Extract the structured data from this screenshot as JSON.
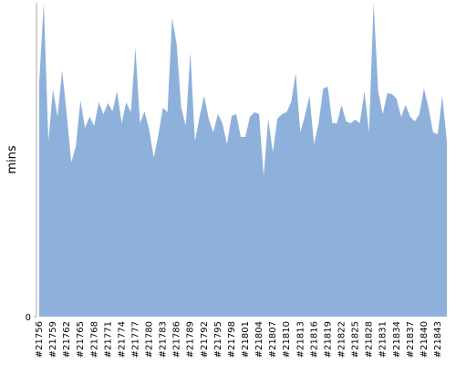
{
  "chart_data": {
    "type": "area",
    "y_label": "mins",
    "categories": [
      "#21756",
      null,
      null,
      "#21759",
      null,
      null,
      "#21762",
      null,
      null,
      "#21765",
      null,
      null,
      "#21768",
      null,
      null,
      "#21771",
      null,
      null,
      "#21774",
      null,
      null,
      "#21777",
      null,
      null,
      "#21780",
      null,
      null,
      "#21783",
      null,
      null,
      "#21786",
      null,
      null,
      "#21789",
      null,
      null,
      "#21792",
      null,
      null,
      "#21795",
      null,
      null,
      "#21798",
      null,
      null,
      "#21801",
      null,
      null,
      "#21804",
      null,
      null,
      "#21807",
      null,
      null,
      "#21810",
      null,
      null,
      "#21813",
      null,
      null,
      "#21816",
      null,
      null,
      "#21819",
      null,
      null,
      "#21822",
      null,
      null,
      "#21825",
      null,
      null,
      "#21828",
      null,
      null,
      "#21831",
      null,
      null,
      "#21834",
      null,
      null,
      "#21837",
      null,
      null,
      "#21840",
      null,
      null,
      "#21843",
      null,
      null
    ],
    "values": [
      257,
      344,
      192,
      249,
      219,
      270,
      222,
      169,
      187,
      237,
      207,
      219,
      209,
      235,
      222,
      234,
      225,
      247,
      212,
      235,
      224,
      295,
      212,
      225,
      205,
      174,
      199,
      229,
      224,
      327,
      299,
      229,
      209,
      290,
      192,
      219,
      242,
      217,
      202,
      222,
      212,
      189,
      220,
      222,
      197,
      197,
      219,
      224,
      222,
      154,
      217,
      180,
      217,
      222,
      224,
      235,
      267,
      202,
      220,
      242,
      189,
      212,
      250,
      252,
      212,
      212,
      232,
      214,
      212,
      216,
      212,
      247,
      202,
      344,
      247,
      222,
      245,
      244,
      239,
      219,
      232,
      219,
      214,
      222,
      250,
      229,
      202,
      200,
      242,
      192
    ],
    "color": "#8eb1db",
    "ylim": [
      0,
      344
    ],
    "yticks": [
      0
    ]
  }
}
